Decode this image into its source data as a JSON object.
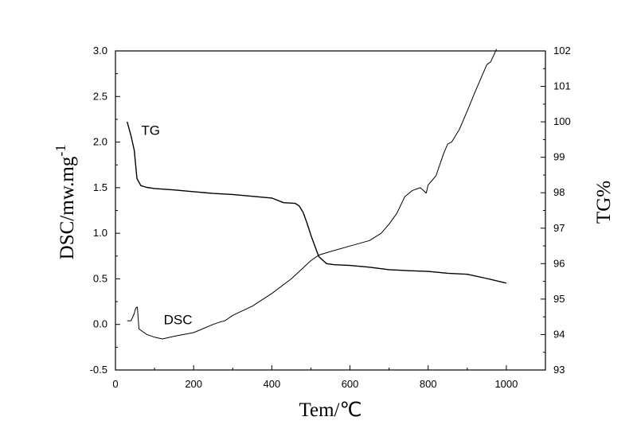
{
  "chart_data": {
    "type": "line",
    "xlabel": "Tem/℃",
    "ylabel_left": "DSC/mw.mg",
    "ylabel_left_superscript": "-1",
    "ylabel_right": "TG%",
    "xlim": [
      0,
      1100
    ],
    "ylim_left": [
      -0.5,
      3.0
    ],
    "ylim_right": [
      93,
      102
    ],
    "x_ticks": [
      "0",
      "200",
      "400",
      "600",
      "800",
      "1000"
    ],
    "x_tick_values": [
      0,
      200,
      400,
      600,
      800,
      1000
    ],
    "y_left_ticks": [
      "-0.5",
      "0.0",
      "0.5",
      "1.0",
      "1.5",
      "2.0",
      "2.5",
      "3.0"
    ],
    "y_left_tick_values": [
      -0.5,
      0.0,
      0.5,
      1.0,
      1.5,
      2.0,
      2.5,
      3.0
    ],
    "y_right_ticks": [
      "93",
      "94",
      "95",
      "96",
      "97",
      "98",
      "99",
      "100",
      "101",
      "102"
    ],
    "y_right_tick_values": [
      93,
      94,
      95,
      96,
      97,
      98,
      99,
      100,
      101,
      102
    ],
    "grid": false,
    "series": [
      {
        "name": "TG",
        "axis": "right",
        "color": "#000000",
        "x": [
          30,
          40,
          48,
          55,
          65,
          80,
          100,
          150,
          200,
          250,
          300,
          350,
          400,
          430,
          460,
          470,
          480,
          490,
          500,
          510,
          520,
          540,
          560,
          600,
          650,
          700,
          750,
          800,
          850,
          900,
          950,
          1000
        ],
        "y": [
          100.0,
          99.6,
          99.2,
          98.4,
          98.2,
          98.15,
          98.12,
          98.08,
          98.03,
          97.98,
          97.95,
          97.9,
          97.85,
          97.72,
          97.7,
          97.63,
          97.45,
          97.15,
          96.8,
          96.5,
          96.2,
          96.0,
          95.97,
          95.95,
          95.9,
          95.83,
          95.8,
          95.78,
          95.73,
          95.7,
          95.58,
          95.45
        ]
      },
      {
        "name": "DSC",
        "axis": "left",
        "color": "#000000",
        "x": [
          30,
          40,
          48,
          52,
          56,
          60,
          70,
          80,
          100,
          120,
          150,
          200,
          250,
          270,
          280,
          300,
          350,
          400,
          450,
          500,
          520,
          550,
          600,
          650,
          680,
          700,
          720,
          740,
          760,
          780,
          790,
          795,
          800,
          820,
          840,
          850,
          860,
          880,
          900,
          920,
          940,
          950,
          960,
          975
        ],
        "y": [
          0.04,
          0.04,
          0.12,
          0.18,
          0.19,
          -0.05,
          -0.08,
          -0.11,
          -0.14,
          -0.16,
          -0.13,
          -0.09,
          0.0,
          0.03,
          0.04,
          0.1,
          0.2,
          0.34,
          0.5,
          0.7,
          0.76,
          0.8,
          0.86,
          0.92,
          1.0,
          1.1,
          1.22,
          1.4,
          1.47,
          1.5,
          1.46,
          1.44,
          1.53,
          1.63,
          1.88,
          1.98,
          2.0,
          2.14,
          2.34,
          2.55,
          2.75,
          2.85,
          2.88,
          3.02
        ]
      }
    ],
    "annotations": [
      {
        "text": "TG",
        "x": 90,
        "y_left": 2.08
      },
      {
        "text": "DSC",
        "x": 160,
        "y_left": 0.0
      }
    ]
  }
}
